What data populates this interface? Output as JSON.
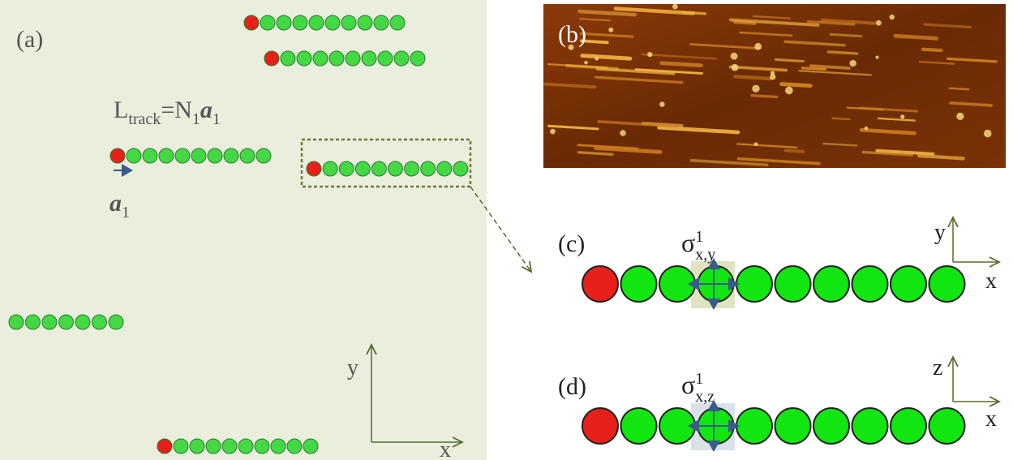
{
  "panel_a": {
    "label": "(a)",
    "formula": {
      "l": "L",
      "l_sub": "track",
      "eq": "=N",
      "n_sub": "1",
      "a": "a",
      "a_sub": "1"
    },
    "vector": {
      "a": "a",
      "a_sub": "1"
    },
    "axes": {
      "y": "y",
      "x": "x"
    }
  },
  "panel_b": {
    "label": "(b)"
  },
  "panel_c": {
    "label": "(c)",
    "sigma": {
      "symbol": "σ",
      "sup": "1",
      "sub": "x,y"
    },
    "axes": {
      "y": "y",
      "x": "x"
    }
  },
  "panel_d": {
    "label": "(d)",
    "sigma": {
      "symbol": "σ",
      "sup": "1",
      "sub": "x,z"
    },
    "axes": {
      "y": "z",
      "x": "x"
    }
  }
}
